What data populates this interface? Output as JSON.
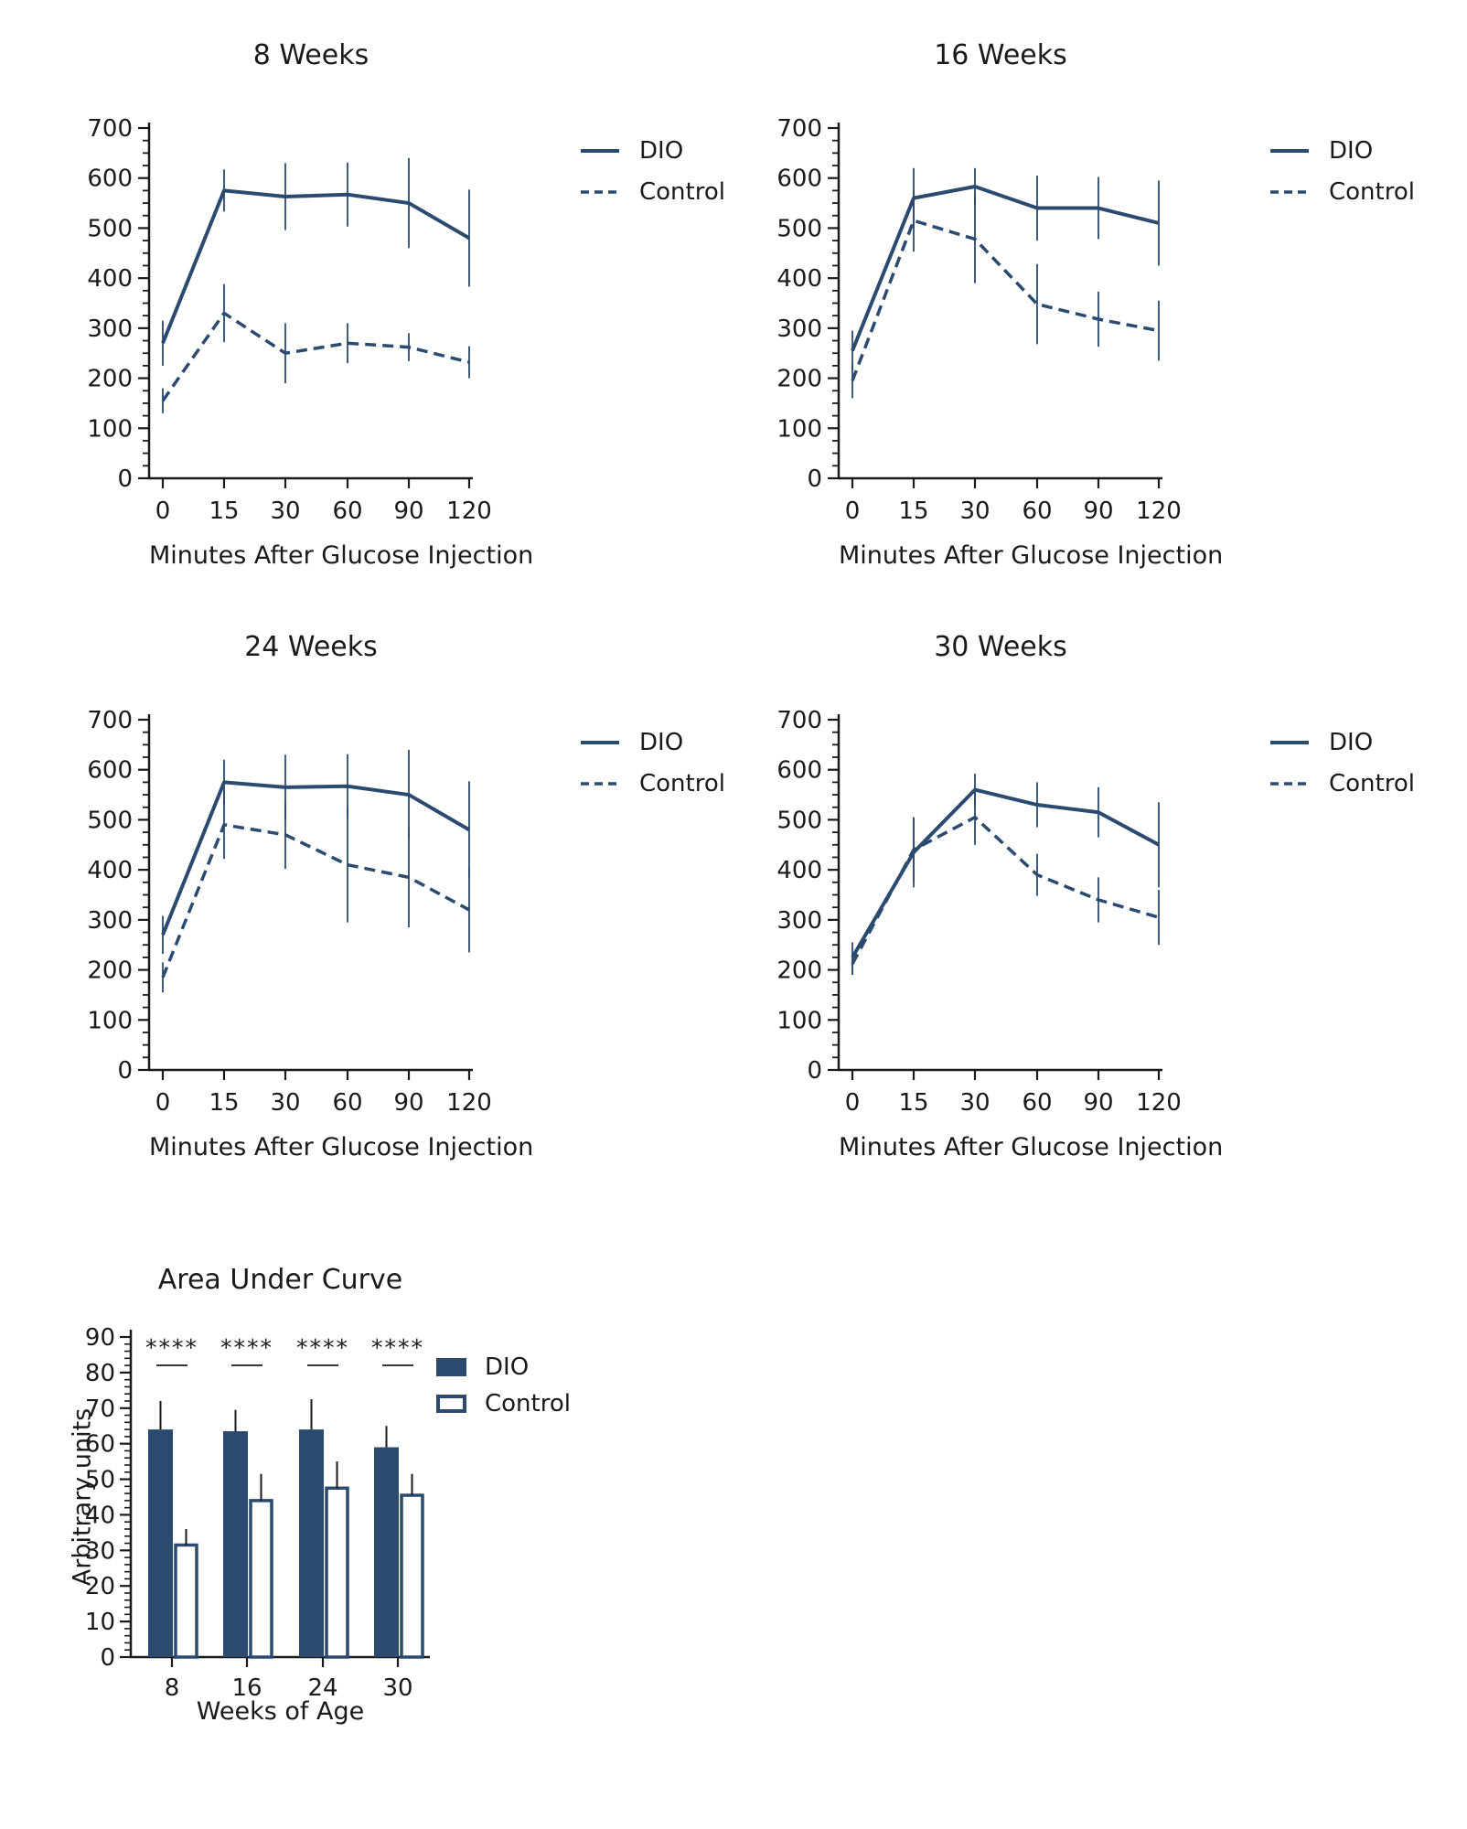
{
  "colors": {
    "navy": "#2b4a6f",
    "text": "#1a1a1a"
  },
  "chart_data": [
    {
      "type": "line",
      "title": "8 Weeks",
      "xlabel": "Minutes After Glucose Injection",
      "x": [
        0,
        15,
        30,
        60,
        90,
        120
      ],
      "ylim": [
        0,
        700
      ],
      "y_major": 100,
      "y_minor": 25,
      "legend_position": "right",
      "grid": false,
      "series": [
        {
          "name": "DIO",
          "style": "solid",
          "values": [
            270,
            575,
            563,
            567,
            550,
            480
          ],
          "errors": [
            45,
            42,
            67,
            64,
            90,
            97
          ]
        },
        {
          "name": "Control",
          "style": "dashed",
          "values": [
            155,
            330,
            250,
            270,
            262,
            232
          ],
          "errors": [
            25,
            58,
            60,
            40,
            28,
            32
          ]
        }
      ]
    },
    {
      "type": "line",
      "title": "16 Weeks",
      "xlabel": "Minutes After Glucose Injection",
      "x": [
        0,
        15,
        30,
        60,
        90,
        120
      ],
      "ylim": [
        0,
        700
      ],
      "y_major": 100,
      "y_minor": 25,
      "legend_position": "right",
      "grid": false,
      "series": [
        {
          "name": "DIO",
          "style": "solid",
          "values": [
            255,
            560,
            583,
            540,
            540,
            510
          ],
          "errors": [
            40,
            60,
            37,
            65,
            62,
            85
          ]
        },
        {
          "name": "Control",
          "style": "dashed",
          "values": [
            195,
            515,
            478,
            348,
            318,
            295
          ],
          "errors": [
            35,
            62,
            88,
            80,
            55,
            60
          ]
        }
      ]
    },
    {
      "type": "line",
      "title": "24 Weeks",
      "xlabel": "Minutes After Glucose Injection",
      "x": [
        0,
        15,
        30,
        60,
        90,
        120
      ],
      "ylim": [
        0,
        700
      ],
      "y_major": 100,
      "y_minor": 25,
      "legend_position": "right",
      "grid": false,
      "series": [
        {
          "name": "DIO",
          "style": "solid",
          "values": [
            270,
            575,
            565,
            567,
            550,
            480
          ],
          "errors": [
            38,
            45,
            65,
            64,
            90,
            97
          ]
        },
        {
          "name": "Control",
          "style": "dashed",
          "values": [
            185,
            490,
            470,
            410,
            385,
            320
          ],
          "errors": [
            30,
            68,
            68,
            115,
            100,
            85
          ]
        }
      ]
    },
    {
      "type": "line",
      "title": "30 Weeks",
      "xlabel": "Minutes After Glucose Injection",
      "x": [
        0,
        15,
        30,
        60,
        90,
        120
      ],
      "ylim": [
        0,
        700
      ],
      "y_major": 100,
      "y_minor": 25,
      "legend_position": "right",
      "grid": false,
      "series": [
        {
          "name": "DIO",
          "style": "solid",
          "values": [
            225,
            435,
            560,
            530,
            515,
            450
          ],
          "errors": [
            30,
            70,
            32,
            45,
            50,
            85
          ]
        },
        {
          "name": "Control",
          "style": "dashed",
          "values": [
            212,
            440,
            505,
            390,
            340,
            305
          ],
          "errors": [
            22,
            65,
            55,
            42,
            45,
            55
          ]
        }
      ]
    },
    {
      "type": "bar",
      "title": "Area Under Curve",
      "xlabel": "Weeks of Age",
      "ylabel": "Arbitrary units",
      "categories": [
        "8",
        "16",
        "24",
        "30"
      ],
      "ylim": [
        0,
        90
      ],
      "y_major": 10,
      "y_minor": 2,
      "significance": [
        "****",
        "****",
        "****",
        "****"
      ],
      "legend_position": "right",
      "grid": false,
      "series": [
        {
          "name": "DIO",
          "fill": "solid",
          "values": [
            64,
            63.5,
            64,
            59
          ],
          "errors": [
            8,
            6,
            8.5,
            6
          ]
        },
        {
          "name": "Control",
          "fill": "outline",
          "values": [
            31.5,
            44,
            47.5,
            45.5
          ],
          "errors": [
            4.5,
            7.5,
            7.5,
            6
          ]
        }
      ]
    }
  ]
}
